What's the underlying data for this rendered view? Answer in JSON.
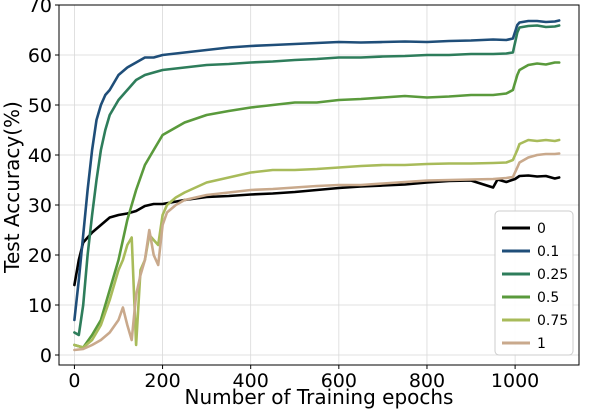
{
  "chart_data": {
    "type": "line",
    "xlabel": "Number of Training epochs",
    "ylabel": "Test Accuracy(%)",
    "xlim": [
      -35,
      1145
    ],
    "ylim": [
      -2,
      70
    ],
    "xticks": [
      0,
      200,
      400,
      600,
      800,
      1000
    ],
    "yticks": [
      0,
      10,
      20,
      30,
      40,
      50,
      60,
      70
    ],
    "grid": true,
    "legend_position": "bottom-right",
    "series": [
      {
        "name": "0",
        "color": "#000000",
        "x": [
          0,
          10,
          20,
          40,
          60,
          80,
          100,
          120,
          140,
          160,
          180,
          200,
          250,
          300,
          350,
          400,
          450,
          500,
          550,
          600,
          650,
          700,
          750,
          800,
          850,
          900,
          950,
          960,
          980,
          1000,
          1010,
          1030,
          1050,
          1070,
          1090,
          1100
        ],
        "values": [
          14,
          19,
          22.5,
          24.5,
          26,
          27.5,
          28,
          28.3,
          28.8,
          29.8,
          30.2,
          30.2,
          31,
          31.6,
          31.8,
          32.1,
          32.3,
          32.6,
          33,
          33.4,
          33.7,
          33.9,
          34.1,
          34.5,
          34.8,
          34.9,
          33.5,
          35.1,
          34.6,
          35.2,
          35.8,
          35.9,
          35.7,
          35.8,
          35.3,
          35.5
        ]
      },
      {
        "name": "0.1",
        "color": "#1f4e79",
        "x": [
          0,
          10,
          20,
          30,
          40,
          50,
          60,
          70,
          80,
          100,
          120,
          140,
          160,
          180,
          200,
          250,
          300,
          350,
          400,
          450,
          500,
          550,
          600,
          650,
          700,
          750,
          800,
          850,
          900,
          950,
          980,
          995,
          1005,
          1010,
          1030,
          1050,
          1070,
          1090,
          1100
        ],
        "values": [
          7,
          15,
          24,
          33,
          41,
          47,
          50,
          52,
          53,
          56,
          57.5,
          58.5,
          59.5,
          59.5,
          60,
          60.5,
          61,
          61.5,
          61.8,
          62,
          62.2,
          62.4,
          62.6,
          62.5,
          62.6,
          62.7,
          62.6,
          62.8,
          62.9,
          63.1,
          63,
          63.3,
          66,
          66.5,
          66.8,
          66.8,
          66.6,
          66.7,
          66.9
        ]
      },
      {
        "name": "0.25",
        "color": "#2e7d5b",
        "x": [
          0,
          10,
          20,
          30,
          40,
          50,
          60,
          70,
          80,
          100,
          120,
          140,
          160,
          180,
          200,
          250,
          300,
          350,
          400,
          450,
          500,
          550,
          600,
          650,
          700,
          750,
          800,
          850,
          900,
          950,
          980,
          995,
          1005,
          1010,
          1030,
          1050,
          1070,
          1090,
          1100
        ],
        "values": [
          4.5,
          4,
          10,
          20,
          28,
          35,
          41,
          45,
          48,
          51,
          53,
          55,
          56,
          56.5,
          57,
          57.5,
          58,
          58.2,
          58.5,
          58.7,
          59,
          59.2,
          59.5,
          59.5,
          59.7,
          59.8,
          60,
          60,
          60.2,
          60.2,
          60.3,
          60.5,
          64.5,
          65.5,
          65.8,
          65.9,
          65.6,
          65.7,
          65.9
        ]
      },
      {
        "name": "0.5",
        "color": "#5a9a3c",
        "x": [
          0,
          20,
          40,
          60,
          80,
          100,
          120,
          140,
          160,
          180,
          200,
          250,
          300,
          350,
          400,
          450,
          500,
          550,
          600,
          650,
          700,
          750,
          800,
          850,
          900,
          950,
          980,
          995,
          1005,
          1010,
          1030,
          1050,
          1070,
          1090,
          1100
        ],
        "values": [
          2,
          1.5,
          4,
          7,
          13,
          19,
          27,
          33,
          38,
          41,
          44,
          46.5,
          48,
          48.8,
          49.5,
          50,
          50.5,
          50.5,
          51,
          51.2,
          51.5,
          51.8,
          51.5,
          51.7,
          52,
          52,
          52.3,
          53,
          56,
          57,
          58,
          58.3,
          58.1,
          58.5,
          58.5
        ]
      },
      {
        "name": "0.75",
        "color": "#a8bb5a",
        "x": [
          0,
          20,
          40,
          60,
          80,
          100,
          110,
          120,
          130,
          140,
          150,
          160,
          170,
          180,
          190,
          200,
          210,
          230,
          250,
          300,
          350,
          400,
          450,
          500,
          550,
          600,
          650,
          700,
          750,
          800,
          850,
          900,
          950,
          980,
          995,
          1005,
          1010,
          1030,
          1050,
          1070,
          1090,
          1100
        ],
        "values": [
          2,
          1.5,
          3,
          6,
          11,
          17,
          19,
          22,
          23.5,
          2,
          17,
          19,
          24,
          23,
          22,
          28,
          30,
          31.5,
          32.5,
          34.5,
          35.5,
          36.5,
          37,
          37,
          37.2,
          37.5,
          37.8,
          38,
          38,
          38.2,
          38.3,
          38.3,
          38.4,
          38.5,
          39,
          41,
          42.2,
          43,
          42.8,
          43,
          42.8,
          43
        ]
      },
      {
        "name": "1",
        "color": "#c9a98c",
        "x": [
          0,
          20,
          40,
          60,
          80,
          100,
          110,
          120,
          130,
          140,
          150,
          160,
          170,
          180,
          190,
          200,
          210,
          230,
          250,
          300,
          350,
          400,
          450,
          500,
          550,
          600,
          650,
          700,
          750,
          800,
          850,
          900,
          950,
          980,
          995,
          1005,
          1010,
          1030,
          1050,
          1070,
          1090,
          1100
        ],
        "values": [
          1,
          1.2,
          2,
          3,
          4.5,
          7,
          9.5,
          6,
          3,
          12,
          16,
          19,
          25,
          20,
          18,
          26,
          28.5,
          30,
          31,
          32,
          32.5,
          33,
          33.2,
          33.5,
          33.8,
          34,
          34,
          34.3,
          34.6,
          34.9,
          35,
          35.1,
          35.2,
          35.4,
          35.6,
          37.5,
          38.5,
          39.5,
          40,
          40.2,
          40.2,
          40.3
        ]
      }
    ]
  }
}
